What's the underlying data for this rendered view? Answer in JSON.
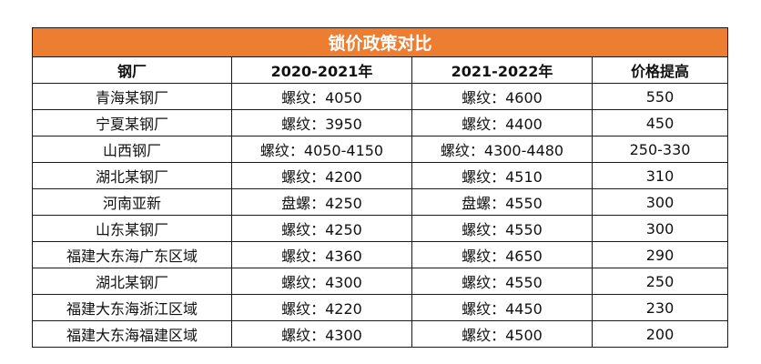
{
  "table": {
    "title": "锁价政策对比",
    "headers": [
      "钢厂",
      "2020-2021年",
      "2021-2022年",
      "价格提高"
    ],
    "rows": [
      [
        "青海某钢厂",
        "螺纹：4050",
        "螺纹：4600",
        "550"
      ],
      [
        "宁夏某钢厂",
        "螺纹：3950",
        "螺纹：4400",
        "450"
      ],
      [
        "山西钢厂",
        "螺纹：4050-4150",
        "螺纹：4300-4480",
        "250-330"
      ],
      [
        "湖北某钢厂",
        "螺纹：4200",
        "螺纹：4510",
        "310"
      ],
      [
        "河南亚新",
        "盘螺：4250",
        "盘螺：4550",
        "300"
      ],
      [
        "山东某钢厂",
        "螺纹：4250",
        "螺纹：4550",
        "300"
      ],
      [
        "福建大东海广东区域",
        "螺纹：4360",
        "螺纹：4650",
        "290"
      ],
      [
        "湖北某钢厂",
        "螺纹：4300",
        "螺纹：4550",
        "250"
      ],
      [
        "福建大东海浙江区域",
        "螺纹：4220",
        "螺纹：4450",
        "230"
      ],
      [
        "福建大东海福建区域",
        "螺纹：4300",
        "螺纹：4500",
        "200"
      ]
    ],
    "colors": {
      "title_bg": "#ed7d31",
      "title_text": "#ffffff",
      "border": "#1a1a1a"
    }
  }
}
